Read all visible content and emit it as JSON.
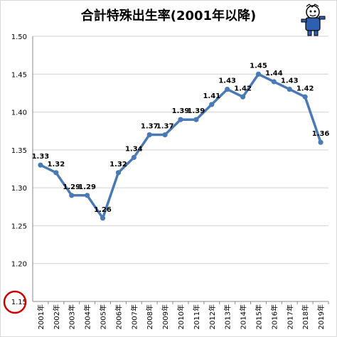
{
  "chart_data": {
    "type": "line",
    "title": "合計特殊出生率(2001年以降)",
    "categories": [
      "2001年",
      "2002年",
      "2003年",
      "2004年",
      "2005年",
      "2006年",
      "2007年",
      "2008年",
      "2009年",
      "2010年",
      "2011年",
      "2012年",
      "2013年",
      "2014年",
      "2015年",
      "2016年",
      "2017年",
      "2018年",
      "2019年"
    ],
    "values": [
      1.33,
      1.32,
      1.29,
      1.29,
      1.26,
      1.32,
      1.34,
      1.37,
      1.37,
      1.39,
      1.39,
      1.41,
      1.43,
      1.42,
      1.45,
      1.44,
      1.43,
      1.42,
      1.36
    ],
    "value_labels": [
      "1.33",
      "1.32",
      "1.29",
      "1.29",
      "1.26",
      "1.32",
      "1.34",
      "1.37",
      "1.37",
      "1.39",
      "1.39",
      "1.41",
      "1.43",
      "1.42",
      "1.45",
      "1.44",
      "1.43",
      "1.42",
      "1.36"
    ],
    "y_ticks": [
      "1.15",
      "1.20",
      "1.25",
      "1.30",
      "1.35",
      "1.40",
      "1.45",
      "1.50"
    ],
    "ylim": [
      1.15,
      1.5
    ],
    "grid": true,
    "line_color": "#4a7ab5",
    "highlight_color": "#cc0000",
    "highlighted_tick": "1.15"
  }
}
